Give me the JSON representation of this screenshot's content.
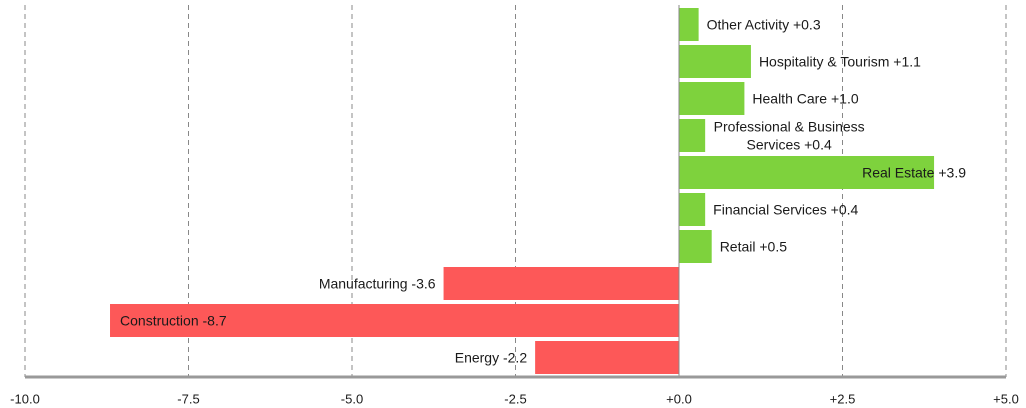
{
  "chart_data": {
    "type": "bar",
    "orientation": "horizontal",
    "categories": [
      "Other Activity",
      "Hospitality & Tourism",
      "Health Care",
      "Professional & Business Services",
      "Real Estate",
      "Financial Services",
      "Retail",
      "Manufacturing",
      "Construction",
      "Energy"
    ],
    "values": [
      0.3,
      1.1,
      1.0,
      0.4,
      3.9,
      0.4,
      0.5,
      -3.6,
      -8.7,
      -2.2
    ],
    "labels": [
      [
        "Other Activity +0.3"
      ],
      [
        "Hospitality & Tourism +1.1"
      ],
      [
        "Health Care +1.0"
      ],
      [
        "Professional & Business",
        "Services +0.4"
      ],
      [
        "Real Estate +3.9"
      ],
      [
        "Financial Services +0.4"
      ],
      [
        "Retail +0.5"
      ],
      [
        "Manufacturing -3.6"
      ],
      [
        "Construction -8.7"
      ],
      [
        "Energy -2.2"
      ]
    ],
    "xlim": [
      -10,
      5
    ],
    "x_ticks": [
      -10,
      -7.5,
      -5,
      -2.5,
      0,
      2.5,
      5
    ],
    "x_tick_labels": [
      "-10.0",
      "-7.5",
      "-5.0",
      "-2.5",
      "+0.0",
      "+2.5",
      "+5.0"
    ],
    "grid": "vertical-dashed",
    "title": "",
    "xlabel": "",
    "ylabel": "",
    "colors": {
      "positive": "#7ed23d",
      "negative": "#fd5858",
      "grid": "#888888",
      "axis": "#999999"
    }
  }
}
